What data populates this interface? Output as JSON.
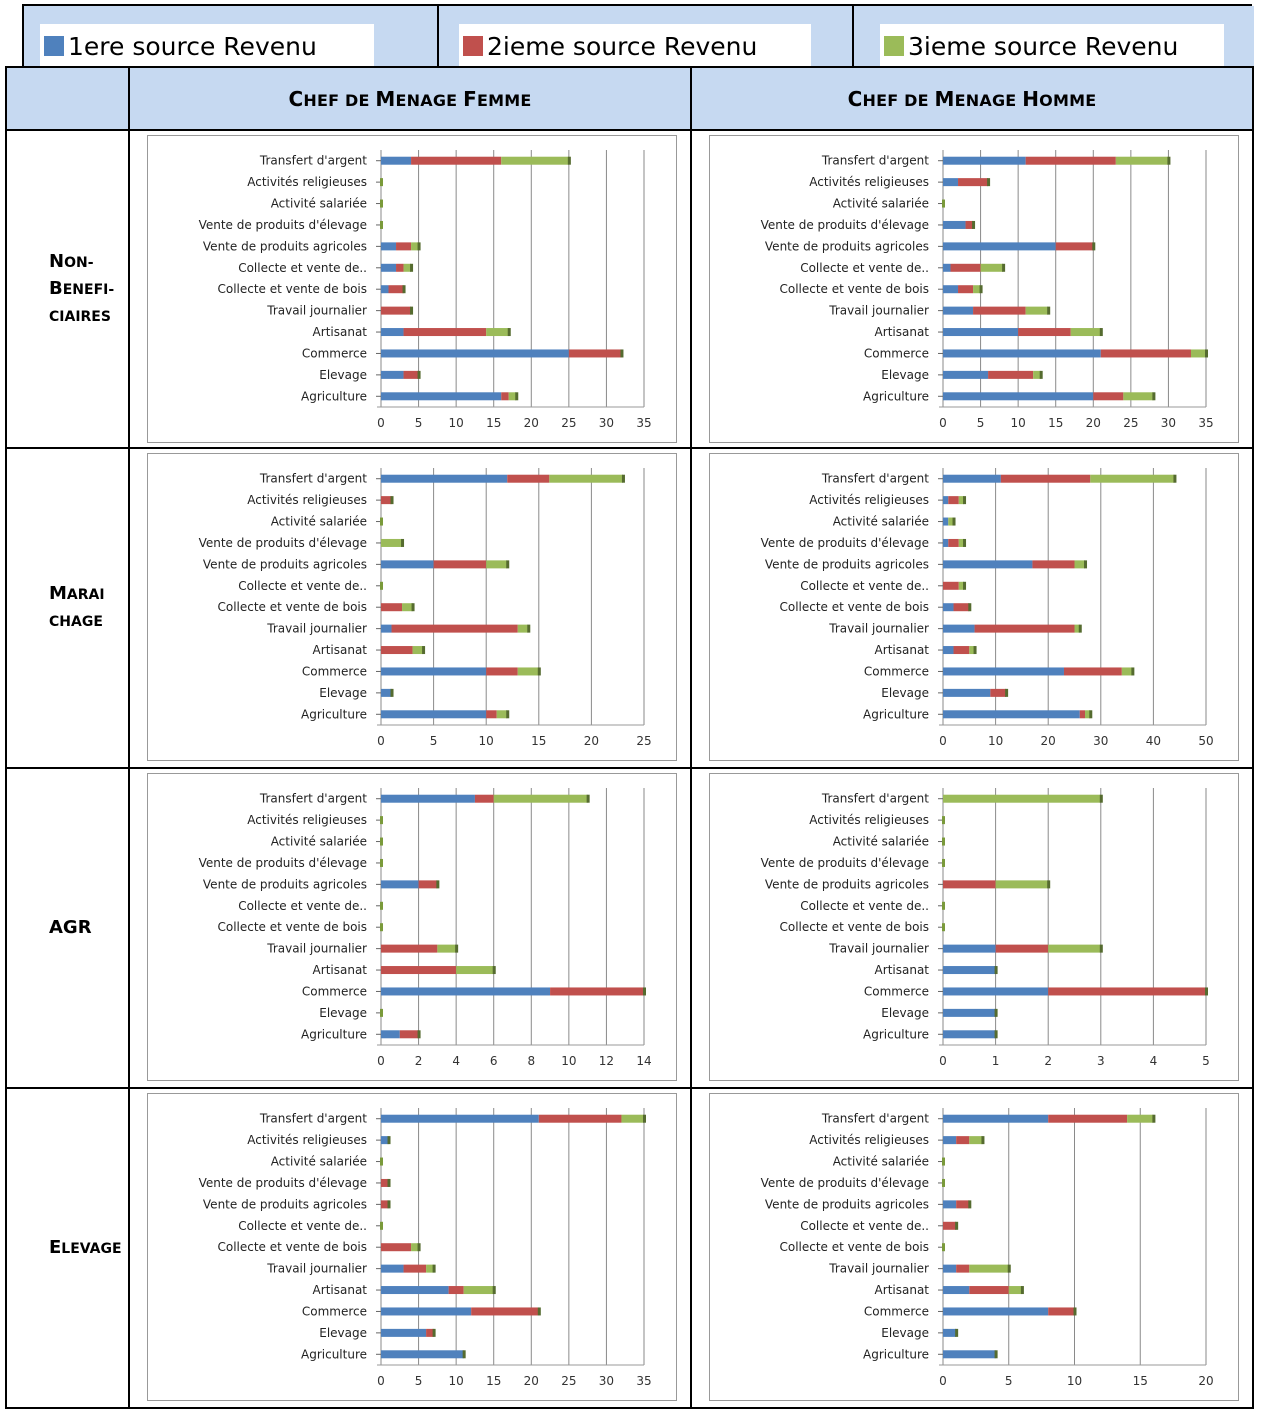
{
  "legend": [
    {
      "label": "1ere source Revenu",
      "color": "#4f81bd"
    },
    {
      "label": "2ieme source Revenu",
      "color": "#c0504d"
    },
    {
      "label": "3ieme source Revenu",
      "color": "#9bbb59"
    }
  ],
  "columns": {
    "femme": {
      "big1": "C",
      "small1": "HEF DE ",
      "big2": "M",
      "small2": "ENAGE ",
      "big3": "F",
      "small3": "EMME"
    },
    "homme": {
      "big1": "C",
      "small1": "HEF DE ",
      "big2": "M",
      "small2": "ENAGE ",
      "big3": "H",
      "small3": "OMME"
    }
  },
  "rows": [
    {
      "l1b": "N",
      "l1s": "ON-",
      "l2b": "B",
      "l2s": "ENEFI-",
      "l3b": "",
      "l3s": "CIAIRES"
    },
    {
      "l1b": "M",
      "l1s": "ARAI",
      "l2b": "",
      "l2s": "CHAGE",
      "l3b": "",
      "l3s": ""
    },
    {
      "l1b": "AGR",
      "l1s": "",
      "l2b": "",
      "l2s": "",
      "l3b": "",
      "l3s": ""
    },
    {
      "l1b": "E",
      "l1s": "LEVAGE",
      "l2b": "",
      "l2s": "",
      "l3b": "",
      "l3s": ""
    }
  ],
  "chart_data": [
    {
      "type": "bar",
      "stacked": true,
      "orientation": "horizontal",
      "panel": "Non-Beneficiaires / Chef de Menage Femme",
      "categories": [
        "Transfert d'argent",
        "Activités religieuses",
        "Activité salariée",
        "Vente de produits d'élevage",
        "Vente de produits agricoles",
        "Collecte et vente de..",
        "Collecte et vente de bois",
        "Travail journalier",
        "Artisanat",
        "Commerce",
        "Elevage",
        "Agriculture"
      ],
      "series": [
        {
          "name": "1ere source Revenu",
          "values": [
            4,
            0,
            0,
            0,
            2,
            2,
            1,
            0,
            3,
            25,
            3,
            16
          ]
        },
        {
          "name": "2ieme source Revenu",
          "values": [
            12,
            0,
            0,
            0,
            2,
            1,
            2,
            4,
            11,
            7,
            2,
            1
          ]
        },
        {
          "name": "3ieme source Revenu",
          "values": [
            9,
            0,
            0,
            0,
            1,
            1,
            0,
            0,
            3,
            0,
            0,
            1
          ]
        }
      ],
      "xlim": [
        0,
        35
      ],
      "ticks": [
        0,
        5,
        10,
        15,
        20,
        25,
        30,
        35
      ]
    },
    {
      "type": "bar",
      "stacked": true,
      "orientation": "horizontal",
      "panel": "Non-Beneficiaires / Chef de Menage Homme",
      "categories": [
        "Transfert d'argent",
        "Activités religieuses",
        "Activité salariée",
        "Vente de produits d'élevage",
        "Vente de produits agricoles",
        "Collecte et vente de..",
        "Collecte et vente de bois",
        "Travail journalier",
        "Artisanat",
        "Commerce",
        "Elevage",
        "Agriculture"
      ],
      "series": [
        {
          "name": "1ere source Revenu",
          "values": [
            11,
            2,
            0,
            3,
            15,
            1,
            2,
            4,
            10,
            21,
            6,
            20
          ]
        },
        {
          "name": "2ieme source Revenu",
          "values": [
            12,
            4,
            0,
            1,
            5,
            4,
            2,
            7,
            7,
            12,
            6,
            4
          ]
        },
        {
          "name": "3ieme source Revenu",
          "values": [
            7,
            0,
            0,
            0,
            0,
            3,
            1,
            3,
            4,
            2,
            1,
            4
          ]
        }
      ],
      "xlim": [
        0,
        35
      ],
      "ticks": [
        0,
        5,
        10,
        15,
        20,
        25,
        30,
        35
      ]
    },
    {
      "type": "bar",
      "stacked": true,
      "orientation": "horizontal",
      "panel": "Maraichage / Chef de Menage Femme",
      "categories": [
        "Transfert d'argent",
        "Activités religieuses",
        "Activité salariée",
        "Vente de produits d'élevage",
        "Vente de produits agricoles",
        "Collecte et vente de..",
        "Collecte et vente de bois",
        "Travail journalier",
        "Artisanat",
        "Commerce",
        "Elevage",
        "Agriculture"
      ],
      "series": [
        {
          "name": "1ere source Revenu",
          "values": [
            12,
            0,
            0,
            0,
            5,
            0,
            0,
            1,
            0,
            10,
            1,
            10
          ]
        },
        {
          "name": "2ieme source Revenu",
          "values": [
            4,
            1,
            0,
            0,
            5,
            0,
            2,
            12,
            3,
            3,
            0,
            1
          ]
        },
        {
          "name": "3ieme source Revenu",
          "values": [
            7,
            0,
            0,
            2,
            2,
            0,
            1,
            1,
            1,
            2,
            0,
            1
          ]
        }
      ],
      "xlim": [
        0,
        25
      ],
      "ticks": [
        0,
        5,
        10,
        15,
        20,
        25
      ]
    },
    {
      "type": "bar",
      "stacked": true,
      "orientation": "horizontal",
      "panel": "Maraichage / Chef de Menage Homme",
      "categories": [
        "Transfert d'argent",
        "Activités religieuses",
        "Activité salariée",
        "Vente de produits d'élevage",
        "Vente de produits agricoles",
        "Collecte et vente de..",
        "Collecte et vente de bois",
        "Travail journalier",
        "Artisanat",
        "Commerce",
        "Elevage",
        "Agriculture"
      ],
      "series": [
        {
          "name": "1ere source Revenu",
          "values": [
            11,
            1,
            1,
            1,
            17,
            0,
            2,
            6,
            2,
            23,
            9,
            26
          ]
        },
        {
          "name": "2ieme source Revenu",
          "values": [
            17,
            2,
            0,
            2,
            8,
            3,
            3,
            19,
            3,
            11,
            3,
            1
          ]
        },
        {
          "name": "3ieme source Revenu",
          "values": [
            16,
            1,
            1,
            1,
            2,
            1,
            0,
            1,
            1,
            2,
            0,
            1
          ]
        }
      ],
      "xlim": [
        0,
        50
      ],
      "ticks": [
        0,
        10,
        20,
        30,
        40,
        50
      ]
    },
    {
      "type": "bar",
      "stacked": true,
      "orientation": "horizontal",
      "panel": "AGR / Chef de Menage Femme",
      "categories": [
        "Transfert d'argent",
        "Activités religieuses",
        "Activité salariée",
        "Vente de produits d'élevage",
        "Vente de produits agricoles",
        "Collecte et vente de..",
        "Collecte et vente de bois",
        "Travail journalier",
        "Artisanat",
        "Commerce",
        "Elevage",
        "Agriculture"
      ],
      "series": [
        {
          "name": "1ere source Revenu",
          "values": [
            5,
            0,
            0,
            0,
            2,
            0,
            0,
            0,
            0,
            9,
            0,
            1
          ]
        },
        {
          "name": "2ieme source Revenu",
          "values": [
            1,
            0,
            0,
            0,
            1,
            0,
            0,
            3,
            4,
            5,
            0,
            1
          ]
        },
        {
          "name": "3ieme source Revenu",
          "values": [
            5,
            0,
            0,
            0,
            0,
            0,
            0,
            1,
            2,
            0,
            0,
            0
          ]
        }
      ],
      "xlim": [
        0,
        14
      ],
      "ticks": [
        0,
        2,
        4,
        6,
        8,
        10,
        12,
        14
      ]
    },
    {
      "type": "bar",
      "stacked": true,
      "orientation": "horizontal",
      "panel": "AGR / Chef de Menage Homme",
      "categories": [
        "Transfert d'argent",
        "Activités religieuses",
        "Activité salariée",
        "Vente de produits d'élevage",
        "Vente de produits agricoles",
        "Collecte et vente de..",
        "Collecte et vente de bois",
        "Travail journalier",
        "Artisanat",
        "Commerce",
        "Elevage",
        "Agriculture"
      ],
      "series": [
        {
          "name": "1ere source Revenu",
          "values": [
            0,
            0,
            0,
            0,
            0,
            0,
            0,
            1,
            1,
            2,
            1,
            1
          ]
        },
        {
          "name": "2ieme source Revenu",
          "values": [
            0,
            0,
            0,
            0,
            1,
            0,
            0,
            1,
            0,
            3,
            0,
            0
          ]
        },
        {
          "name": "3ieme source Revenu",
          "values": [
            3,
            0,
            0,
            0,
            1,
            0,
            0,
            1,
            0,
            0,
            0,
            0
          ]
        }
      ],
      "xlim": [
        0,
        5
      ],
      "ticks": [
        0,
        1,
        2,
        3,
        4,
        5
      ]
    },
    {
      "type": "bar",
      "stacked": true,
      "orientation": "horizontal",
      "panel": "Elevage / Chef de Menage Femme",
      "categories": [
        "Transfert d'argent",
        "Activités religieuses",
        "Activité salariée",
        "Vente de produits d'élevage",
        "Vente de produits agricoles",
        "Collecte et vente de..",
        "Collecte et vente de bois",
        "Travail journalier",
        "Artisanat",
        "Commerce",
        "Elevage",
        "Agriculture"
      ],
      "series": [
        {
          "name": "1ere source Revenu",
          "values": [
            21,
            1,
            0,
            0,
            0,
            0,
            0,
            3,
            9,
            12,
            6,
            11
          ]
        },
        {
          "name": "2ieme source Revenu",
          "values": [
            11,
            0,
            0,
            1,
            1,
            0,
            4,
            3,
            2,
            9,
            1,
            0
          ]
        },
        {
          "name": "3ieme source Revenu",
          "values": [
            3,
            0,
            0,
            0,
            0,
            0,
            1,
            1,
            4,
            0,
            0,
            0
          ]
        }
      ],
      "xlim": [
        0,
        35
      ],
      "ticks": [
        0,
        5,
        10,
        15,
        20,
        25,
        30,
        35
      ]
    },
    {
      "type": "bar",
      "stacked": true,
      "orientation": "horizontal",
      "panel": "Elevage / Chef de Menage Homme",
      "categories": [
        "Transfert d'argent",
        "Activités religieuses",
        "Activité salariée",
        "Vente de produits d'élevage",
        "Vente de produits agricoles",
        "Collecte et vente de..",
        "Collecte et vente de bois",
        "Travail journalier",
        "Artisanat",
        "Commerce",
        "Elevage",
        "Agriculture"
      ],
      "series": [
        {
          "name": "1ere source Revenu",
          "values": [
            8,
            1,
            0,
            0,
            1,
            0,
            0,
            1,
            2,
            8,
            1,
            4
          ]
        },
        {
          "name": "2ieme source Revenu",
          "values": [
            6,
            1,
            0,
            0,
            1,
            1,
            0,
            1,
            3,
            2,
            0,
            0
          ]
        },
        {
          "name": "3ieme source Revenu",
          "values": [
            2,
            1,
            0,
            0,
            0,
            0,
            0,
            3,
            1,
            0,
            0,
            0
          ]
        }
      ],
      "xlim": [
        0,
        20
      ],
      "ticks": [
        0,
        5,
        10,
        15,
        20
      ]
    }
  ]
}
